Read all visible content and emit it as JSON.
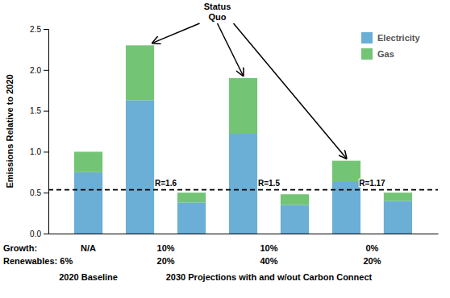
{
  "chart_data": {
    "type": "bar",
    "stacked": true,
    "categories": [
      null,
      null,
      null,
      null,
      null,
      null,
      null
    ],
    "series": [
      {
        "name": "Electricity",
        "color": "#6baed6",
        "values": [
          0.75,
          1.63,
          0.38,
          1.22,
          0.35,
          0.63,
          0.4
        ]
      },
      {
        "name": "Gas",
        "color": "#74c476",
        "values": [
          0.25,
          0.67,
          0.12,
          0.68,
          0.13,
          0.26,
          0.1
        ]
      }
    ],
    "ylabel": "Emissions Relative to 2020",
    "ylim": [
      0,
      2.5
    ],
    "yticks": [
      {
        "value": 0,
        "label": "0.0"
      },
      0.5,
      {
        "value": 1,
        "label": "1.0"
      },
      1.5,
      {
        "value": 2,
        "label": "2.0"
      },
      2.5
    ],
    "tick_labels": "y",
    "grid": false,
    "legend": "upper right",
    "hline": 0.535,
    "r_labels": [
      "R=1.6",
      "R=1.5",
      "R=1.17"
    ],
    "annotation": "Status\nQuo",
    "growth_header": "Growth:",
    "growth": [
      "N/A",
      "10%",
      "10%",
      "0%"
    ],
    "renewables_header": "Renewables: 6%",
    "renewables": [
      null,
      "20%",
      "40%",
      "20%"
    ],
    "sections": [
      "2020 Baseline",
      "2030 Projections with and w/out Carbon Connect"
    ]
  }
}
